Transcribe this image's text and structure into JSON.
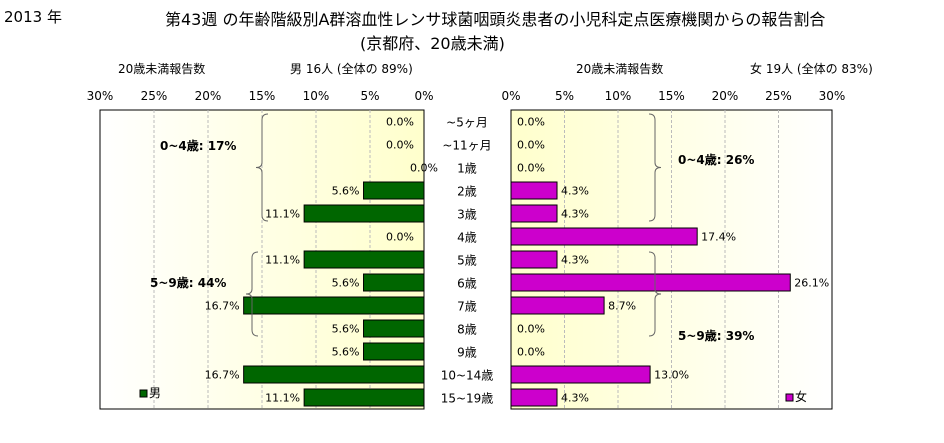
{
  "header": {
    "year": "2013 年",
    "title": "第43週 の年齢階級別A群溶血性レンサ球菌咽頭炎患者の小児科定点医療機関からの報告割合",
    "subtitle": "(京都府、20歳未満)",
    "left_axis_label": "20歳未満報告数",
    "left_summary": "男 16人 (全体の 89%)",
    "right_axis_label": "20歳未満報告数",
    "right_summary": "女 19人 (全体の 83%)"
  },
  "colors": {
    "male": "#006600",
    "female": "#cc00cc",
    "panel": "#ffffcc",
    "panel_fade": "#ffffff"
  },
  "chart_data": {
    "type": "bar",
    "orientation": "horizontal-butterfly",
    "categories": [
      "~5ヶ月",
      "~11ヶ月",
      "1歳",
      "2歳",
      "3歳",
      "4歳",
      "5歳",
      "6歳",
      "7歳",
      "8歳",
      "9歳",
      "10~14歳",
      "15~19歳"
    ],
    "series": [
      {
        "name": "男",
        "side": "left",
        "values": [
          0.0,
          0.0,
          0.0,
          5.6,
          11.1,
          0.0,
          11.1,
          5.6,
          16.7,
          5.6,
          5.6,
          16.7,
          11.1
        ],
        "labels": [
          "0.0%",
          "0.0%",
          "0.0%",
          "5.6%",
          "11.1%",
          "0.0%",
          "11.1%",
          "5.6%",
          "16.7%",
          "5.6%",
          "5.6%",
          "16.7%",
          "11.1%"
        ]
      },
      {
        "name": "女",
        "side": "right",
        "values": [
          0.0,
          0.0,
          0.0,
          4.3,
          4.3,
          17.4,
          4.3,
          26.1,
          8.7,
          0.0,
          0.0,
          13.0,
          4.3
        ],
        "labels": [
          "0.0%",
          "0.0%",
          "0.0%",
          "4.3%",
          "4.3%",
          "17.4%",
          "4.3%",
          "26.1%",
          "8.7%",
          "0.0%",
          "0.0%",
          "13.0%",
          "4.3%"
        ]
      }
    ],
    "xlim": [
      0,
      30
    ],
    "ticks": [
      30,
      25,
      20,
      15,
      10,
      5,
      0
    ],
    "tick_labels": [
      "30%",
      "25%",
      "20%",
      "15%",
      "10%",
      "5%",
      "0%"
    ],
    "grid": true,
    "groups": [
      {
        "side": "left",
        "label": "0~4歳: 17%",
        "from": 0,
        "to": 5
      },
      {
        "side": "left",
        "label": "5~9歳: 44%",
        "from": 6,
        "to": 10
      },
      {
        "side": "right",
        "label": "0~4歳: 26%",
        "from": 0,
        "to": 5
      },
      {
        "side": "right",
        "label": "5~9歳: 39%",
        "from": 6,
        "to": 10
      }
    ],
    "legend": [
      {
        "side": "left",
        "label": "男",
        "placement": "bottom-left"
      },
      {
        "side": "right",
        "label": "女",
        "placement": "bottom-right"
      }
    ]
  }
}
